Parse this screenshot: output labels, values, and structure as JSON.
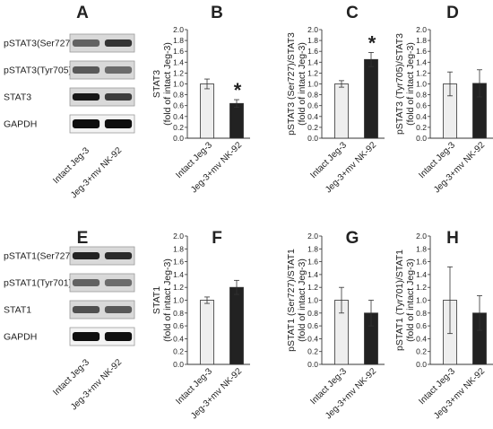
{
  "blots": [
    {
      "panel": "A",
      "rows": [
        {
          "label": "pSTAT3(Ser727)",
          "bands": [
            0.55,
            0.8
          ]
        },
        {
          "label": "pSTAT3(Tyr705)",
          "bands": [
            0.6,
            0.5
          ]
        },
        {
          "label": "STAT3",
          "bands": [
            0.95,
            0.75
          ]
        },
        {
          "label": "GAPDH",
          "bands": [
            1.0,
            1.0
          ]
        }
      ]
    },
    {
      "panel": "E",
      "rows": [
        {
          "label": "pSTAT1(Ser727)",
          "bands": [
            0.9,
            0.85
          ]
        },
        {
          "label": "pSTAT1(Tyr701)",
          "bands": [
            0.55,
            0.5
          ]
        },
        {
          "label": "STAT1",
          "bands": [
            0.65,
            0.6
          ]
        },
        {
          "label": "GAPDH",
          "bands": [
            1.0,
            1.0
          ]
        }
      ]
    }
  ],
  "chart_data": [
    {
      "panel": "B",
      "type": "bar",
      "categories": [
        "Intact Jeg-3",
        "Jeg-3+mv NK-92"
      ],
      "values": [
        1.0,
        0.64
      ],
      "errors": [
        0.09,
        0.07
      ],
      "significance": [
        "",
        "*"
      ],
      "ylabel": [
        "STAT3",
        "(fold of intact Jeg-3)"
      ],
      "ylim": [
        0,
        2.0
      ],
      "yticks": [
        0.0,
        0.2,
        0.4,
        0.6,
        0.8,
        1.0,
        1.2,
        1.4,
        1.6,
        1.8,
        2.0
      ],
      "colors": [
        "#eeeeee",
        "#222222"
      ]
    },
    {
      "panel": "C",
      "type": "bar",
      "categories": [
        "Intact Jeg-3",
        "Jeg-3+mv NK-92"
      ],
      "values": [
        1.0,
        1.45
      ],
      "errors": [
        0.06,
        0.13
      ],
      "significance": [
        "",
        "*"
      ],
      "ylabel": [
        "pSTAT3 (Ser727)/STAT3",
        "(fold of intact Jeg-3)"
      ],
      "ylim": [
        0,
        2.0
      ],
      "yticks": [
        0.0,
        0.2,
        0.4,
        0.6,
        0.8,
        1.0,
        1.2,
        1.4,
        1.6,
        1.8,
        2.0
      ],
      "colors": [
        "#eeeeee",
        "#222222"
      ]
    },
    {
      "panel": "D",
      "type": "bar",
      "categories": [
        "Intact Jeg-3",
        "Jeg-3+mv NK-92"
      ],
      "values": [
        1.0,
        1.01
      ],
      "errors": [
        0.22,
        0.25
      ],
      "significance": [
        "",
        ""
      ],
      "ylabel": [
        "pSTAT3 (Tyr705)/STAT3",
        "(fold of intact Jeg-3)"
      ],
      "ylim": [
        0,
        2.0
      ],
      "yticks": [
        0.0,
        0.2,
        0.4,
        0.6,
        0.8,
        1.0,
        1.2,
        1.4,
        1.6,
        1.8,
        2.0
      ],
      "colors": [
        "#eeeeee",
        "#222222"
      ]
    },
    {
      "panel": "F",
      "type": "bar",
      "categories": [
        "Intact Jeg-3",
        "Jeg-3+mv NK-92"
      ],
      "values": [
        1.0,
        1.2
      ],
      "errors": [
        0.05,
        0.11
      ],
      "significance": [
        "",
        ""
      ],
      "ylabel": [
        "STAT1",
        "(fold of intact Jeg-3)"
      ],
      "ylim": [
        0,
        2.0
      ],
      "yticks": [
        0.0,
        0.2,
        0.4,
        0.6,
        0.8,
        1.0,
        1.2,
        1.4,
        1.6,
        1.8,
        2.0
      ],
      "colors": [
        "#eeeeee",
        "#222222"
      ]
    },
    {
      "panel": "G",
      "type": "bar",
      "categories": [
        "Intact Jeg-3",
        "Jeg-3+mv NK-92"
      ],
      "values": [
        1.0,
        0.8
      ],
      "errors": [
        0.2,
        0.2
      ],
      "significance": [
        "",
        ""
      ],
      "ylabel": [
        "pSTAT1 (Ser727)/STAT1",
        "(fold of intact Jeg-3)"
      ],
      "ylim": [
        0,
        2.0
      ],
      "yticks": [
        0.0,
        0.2,
        0.4,
        0.6,
        0.8,
        1.0,
        1.2,
        1.4,
        1.6,
        1.8,
        2.0
      ],
      "colors": [
        "#eeeeee",
        "#222222"
      ]
    },
    {
      "panel": "H",
      "type": "bar",
      "categories": [
        "Intact Jeg-3",
        "Jeg-3+mv NK-92"
      ],
      "values": [
        1.0,
        0.8
      ],
      "errors": [
        0.52,
        0.27
      ],
      "significance": [
        "",
        ""
      ],
      "ylabel": [
        "pSTAT1 (Tyr701)/STAT1",
        "(fold of intact Jeg-3)"
      ],
      "ylim": [
        0,
        2.0
      ],
      "yticks": [
        0.0,
        0.2,
        0.4,
        0.6,
        0.8,
        1.0,
        1.2,
        1.4,
        1.6,
        1.8,
        2.0
      ],
      "colors": [
        "#eeeeee",
        "#222222"
      ]
    }
  ]
}
